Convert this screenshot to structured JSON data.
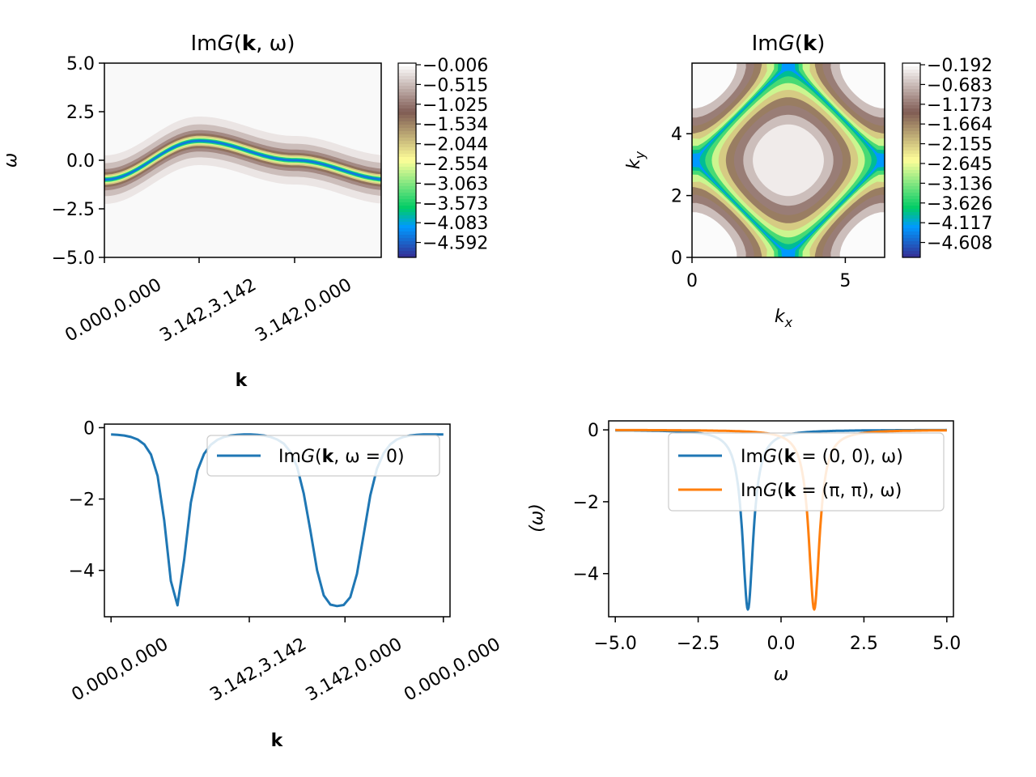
{
  "chart_data": [
    {
      "id": "spectral_k_omega",
      "type": "heatmap",
      "title": "ImG(k,ω)",
      "title_parts": {
        "pre": "Im",
        "func": "G",
        "open": "(",
        "bold": "k",
        "rest": ", ω",
        "close": ")"
      },
      "xlabel": "k",
      "ylabel": "ω",
      "xtick_labels": [
        "0.000,0.000",
        "3.142,3.142",
        "3.142,0.000"
      ],
      "ytick_labels": [
        "5.0",
        "2.5",
        "0.0",
        "−2.5",
        "−5.0"
      ],
      "ylim": [
        -5.0,
        5.0
      ],
      "k_path": [
        [
          0.0,
          0.0
        ],
        [
          3.142,
          3.142
        ],
        [
          3.142,
          0.0
        ],
        [
          0.0,
          0.0
        ]
      ],
      "colormap": "terrain",
      "colorbar_ticks": [
        "−0.006",
        "−0.515",
        "−1.025",
        "−1.534",
        "−2.044",
        "−2.554",
        "−3.063",
        "−3.573",
        "−4.083",
        "−4.592"
      ],
      "colorbar_range": [
        -5.1,
        -0.006
      ],
      "band_dispersion": "omega(k) = -0.5*(cos kx + cos ky)",
      "broadening": 0.2
    },
    {
      "id": "spectral_k",
      "type": "heatmap",
      "title": "ImG(k)",
      "title_parts": {
        "pre": "Im",
        "func": "G",
        "open": "(",
        "bold": "k",
        "rest": "",
        "close": ")"
      },
      "xlabel": "k_x",
      "ylabel": "k_y",
      "xtick_labels": [
        "0",
        "5"
      ],
      "ytick_labels": [
        "4",
        "2",
        "0"
      ],
      "xlim": [
        0,
        6.2832
      ],
      "ylim": [
        0,
        6.2832
      ],
      "colormap": "terrain",
      "colorbar_ticks": [
        "−0.192",
        "−0.683",
        "−1.173",
        "−1.664",
        "−2.155",
        "−2.645",
        "−3.136",
        "−3.626",
        "−4.117",
        "−4.608"
      ],
      "colorbar_range": [
        -5.1,
        -0.192
      ]
    },
    {
      "id": "omega_zero_cut",
      "type": "line",
      "xlabel": "k",
      "ylabel": "",
      "xtick_labels": [
        "0.000,0.000",
        "3.142,3.142",
        "3.142,0.000",
        "0.000,0.000"
      ],
      "ytick_labels": [
        "0",
        "−2",
        "−4"
      ],
      "ylim": [
        -5.3,
        0.1
      ],
      "series": [
        {
          "name": "ImG(k, ω = 0)",
          "legend_parts": {
            "pre": "Im",
            "func": "G",
            "open": "(",
            "bold": "k",
            "rest": ", ω = 0",
            "close": ")"
          },
          "color": "#1f77b4",
          "x": [
            0,
            1,
            2,
            3,
            4,
            5,
            6,
            7,
            8,
            9,
            10,
            11,
            12,
            13,
            14,
            15,
            16,
            17,
            18,
            19,
            20,
            21,
            22,
            23,
            24,
            25,
            26,
            27,
            28,
            29,
            30,
            31,
            32,
            33,
            34,
            35,
            36,
            37,
            38,
            39,
            40,
            41,
            42,
            43,
            44,
            45,
            46,
            47,
            48,
            49,
            50
          ],
          "y": [
            -0.19,
            -0.2,
            -0.22,
            -0.26,
            -0.33,
            -0.47,
            -0.75,
            -1.35,
            -2.6,
            -4.3,
            -4.98,
            -3.7,
            -2.1,
            -1.2,
            -0.73,
            -0.48,
            -0.34,
            -0.26,
            -0.22,
            -0.2,
            -0.19,
            -0.19,
            -0.2,
            -0.22,
            -0.26,
            -0.33,
            -0.45,
            -0.68,
            -1.1,
            -1.85,
            -2.9,
            -4.0,
            -4.7,
            -4.96,
            -5.0,
            -4.97,
            -4.75,
            -4.1,
            -3.0,
            -1.9,
            -1.15,
            -0.72,
            -0.47,
            -0.33,
            -0.26,
            -0.22,
            -0.2,
            -0.19,
            -0.19,
            -0.19,
            -0.19
          ]
        }
      ]
    },
    {
      "id": "k_cut",
      "type": "line",
      "xlabel": "ω",
      "ylabel": "(ω)",
      "xtick_labels": [
        "−5.0",
        "−2.5",
        "0.0",
        "2.5",
        "5.0"
      ],
      "ytick_labels": [
        "0",
        "−2",
        "−4"
      ],
      "xlim": [
        -5.2,
        5.2
      ],
      "ylim": [
        -5.2,
        0.25
      ],
      "series": [
        {
          "name": "ImG(k = (0, 0), ω)",
          "legend_parts": {
            "pre": "Im",
            "func": "G",
            "open": "(",
            "bold": "k",
            "rest": " = (0, 0), ω",
            "close": ")"
          },
          "color": "#1f77b4",
          "center": -1.0,
          "width": 0.2,
          "peak": -5.0
        },
        {
          "name": "ImG(k = (π, π), ω)",
          "legend_parts": {
            "pre": "Im",
            "func": "G",
            "open": "(",
            "bold": "k",
            "rest": " = (π, π), ω",
            "close": ")"
          },
          "color": "#ff7f0e",
          "center": 1.0,
          "width": 0.2,
          "peak": -5.0
        }
      ]
    }
  ]
}
